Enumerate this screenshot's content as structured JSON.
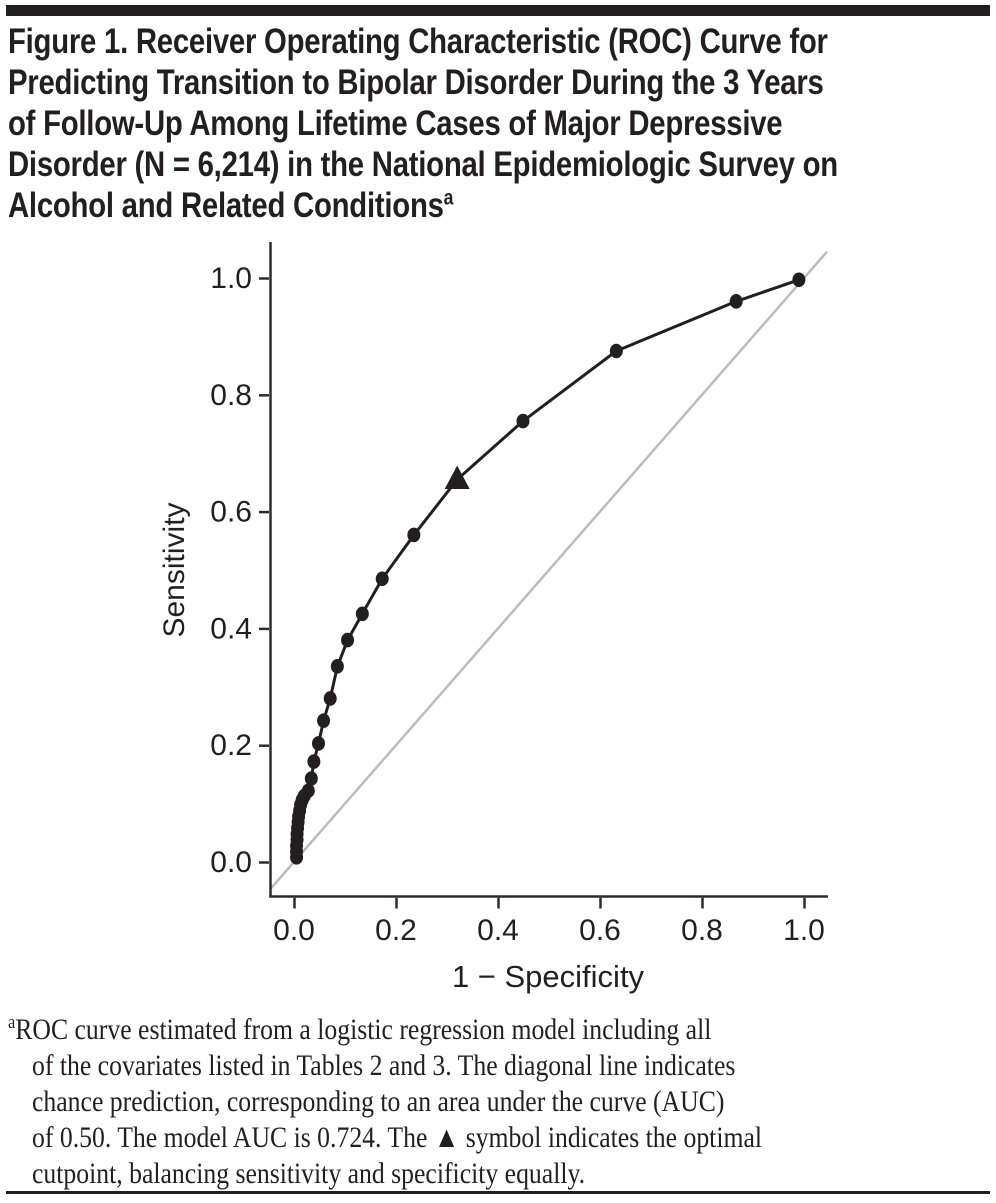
{
  "figure": {
    "title_lines": [
      "Figure 1. Receiver Operating Characteristic (ROC) Curve for",
      "Predicting Transition to Bipolar Disorder During the 3 Years",
      "of Follow-Up Among Lifetime Cases of Major Depressive",
      "Disorder (N = 6,214) in the National Epidemiologic Survey on",
      "Alcohol and Related Conditions"
    ],
    "title_superscript": "a",
    "footnote_marker": "a",
    "footnote_lines": [
      "ROC curve estimated from a logistic regression model including all",
      "of the covariates listed in Tables 2 and 3. The diagonal line indicates",
      "chance prediction, corresponding to an area under the curve (AUC)",
      "of 0.50. The model AUC is 0.724. The ▲ symbol indicates the optimal",
      "cutpoint, balancing sensitivity and specificity equally."
    ]
  },
  "chart_data": {
    "type": "line",
    "title": "",
    "xlabel": "1 − Specificity",
    "ylabel": "Sensitivity",
    "xlim": [
      0.0,
      1.0
    ],
    "ylim": [
      0.0,
      1.0
    ],
    "grid": false,
    "legend": "none",
    "x_tick_values": [
      0.0,
      0.2,
      0.4,
      0.6,
      0.8,
      1.0
    ],
    "x_tick_labels": [
      "0.0",
      "0.2",
      "0.4",
      "0.6",
      "0.8",
      "1.0"
    ],
    "y_tick_values": [
      0.0,
      0.2,
      0.4,
      0.6,
      0.8,
      1.0
    ],
    "y_tick_labels": [
      "0.0",
      "0.2",
      "0.4",
      "0.6",
      "0.8",
      "1.0"
    ],
    "model_auc": 0.724,
    "chance_auc": 0.5,
    "optimal_cutpoint": {
      "marker": "triangle",
      "point": [
        0.32,
        0.655
      ]
    },
    "series": [
      {
        "name": "ROC curve",
        "marker": "circle",
        "color": "#231f20",
        "points": [
          [
            0.005,
            0.008
          ],
          [
            0.005,
            0.018
          ],
          [
            0.005,
            0.028
          ],
          [
            0.006,
            0.038
          ],
          [
            0.006,
            0.048
          ],
          [
            0.007,
            0.058
          ],
          [
            0.008,
            0.068
          ],
          [
            0.009,
            0.078
          ],
          [
            0.011,
            0.088
          ],
          [
            0.013,
            0.098
          ],
          [
            0.016,
            0.106
          ],
          [
            0.02,
            0.113
          ],
          [
            0.028,
            0.122
          ],
          [
            0.034,
            0.143
          ],
          [
            0.039,
            0.172
          ],
          [
            0.048,
            0.203
          ],
          [
            0.058,
            0.242
          ],
          [
            0.071,
            0.28
          ],
          [
            0.085,
            0.335
          ],
          [
            0.105,
            0.38
          ],
          [
            0.134,
            0.425
          ],
          [
            0.173,
            0.485
          ],
          [
            0.235,
            0.56
          ],
          [
            0.32,
            0.655
          ],
          [
            0.449,
            0.755
          ],
          [
            0.632,
            0.875
          ],
          [
            0.867,
            0.96
          ],
          [
            0.99,
            0.997
          ]
        ]
      },
      {
        "name": "Chance prediction diagonal",
        "marker": "none",
        "color": "#bcbcbc",
        "points": [
          [
            0.0,
            0.0
          ],
          [
            1.0,
            1.0
          ]
        ]
      }
    ]
  },
  "colors": {
    "ink": "#231f20",
    "axis": "#2e2b2c",
    "diagonal": "#bcbcbc",
    "background": "#ffffff"
  }
}
